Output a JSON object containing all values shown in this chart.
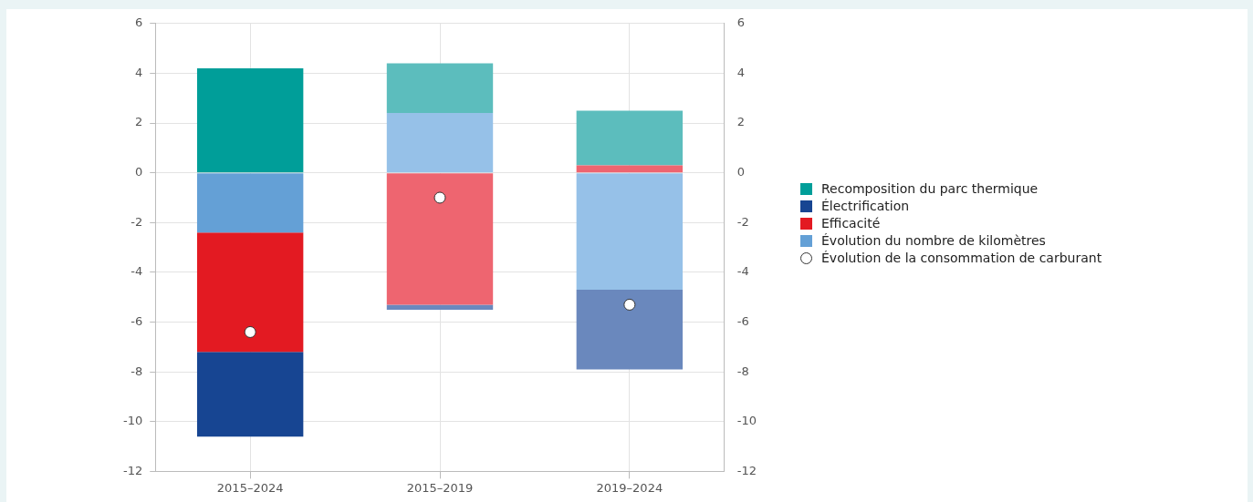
{
  "chart_data": {
    "type": "bar",
    "stacked": true,
    "categories": [
      "2015–2024",
      "2015–2019",
      "2019–2024"
    ],
    "series": [
      {
        "name": "Évolution du nombre de kilomètres",
        "color": "#64a0d6",
        "colors": [
          "#64a0d6",
          "#96c1e8",
          "#96c1e8"
        ],
        "values": [
          -2.4,
          2.4,
          -4.7
        ]
      },
      {
        "name": "Efficacité",
        "color": "#e31a22",
        "colors": [
          "#e31a22",
          "#ee6570",
          "#ee6570"
        ],
        "values": [
          -4.8,
          -5.3,
          0.3
        ]
      },
      {
        "name": "Électrification",
        "color": "#174592",
        "colors": [
          "#174592",
          "#6a88bd",
          "#6a88bd"
        ],
        "values": [
          -3.4,
          -0.2,
          -3.2
        ]
      },
      {
        "name": "Recomposition du parc thermique",
        "color": "#009e99",
        "colors": [
          "#009e99",
          "#5cbdbd",
          "#5cbdbd"
        ],
        "values": [
          4.2,
          2.0,
          2.2
        ]
      },
      {
        "name": "Évolution de la consommation de carburant",
        "type": "scatter",
        "marker": "circle",
        "color": "#ffffff",
        "x": [
          "2015–2024",
          "2015–2019",
          "2019–2024"
        ],
        "values": [
          -6.4,
          -1.0,
          -5.3
        ]
      }
    ],
    "ylim": [
      -12,
      6
    ],
    "yticks": [
      -12,
      -10,
      -8,
      -6,
      -4,
      -2,
      0,
      2,
      4,
      6
    ],
    "y2lim": [
      -12,
      6
    ],
    "y2ticks": [
      -12,
      -10,
      -8,
      -6,
      -4,
      -2,
      0,
      2,
      4,
      6
    ],
    "grid": true,
    "legend": "right"
  }
}
